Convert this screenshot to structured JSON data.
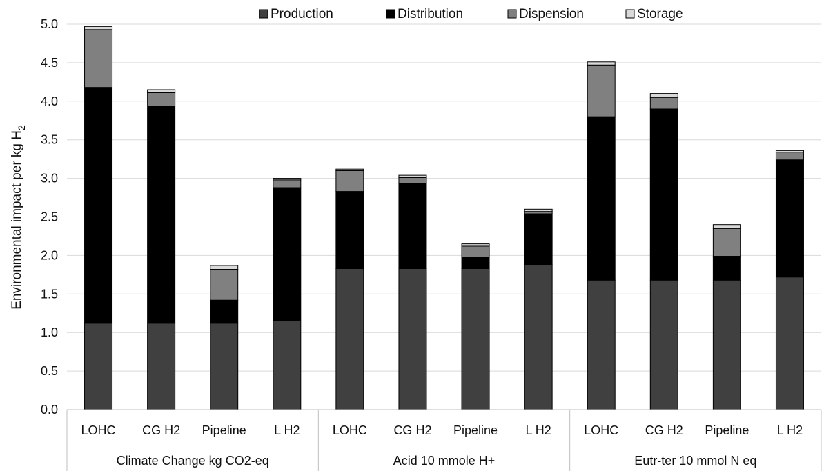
{
  "chart_data": {
    "type": "bar",
    "stacked": true,
    "ylabel": "Environmental impact per kg H",
    "ylabel_subscript": "2",
    "ylim": [
      0,
      5.0
    ],
    "yticks": [
      "0.0",
      "0.5",
      "1.0",
      "1.5",
      "2.0",
      "2.5",
      "3.0",
      "3.5",
      "4.0",
      "4.5",
      "5.0"
    ],
    "grid": "horizontal",
    "legend_position": "top",
    "categories": [
      "LOHC",
      "CG H2",
      "Pipeline",
      "L H2",
      "LOHC",
      "CG H2",
      "Pipeline",
      "L H2",
      "LOHC",
      "CG H2",
      "Pipeline",
      "L H2"
    ],
    "groups": [
      {
        "label": "Climate Change kg CO2-eq",
        "span": [
          0,
          3
        ]
      },
      {
        "label": "Acid 10 mmole H+",
        "span": [
          4,
          7
        ]
      },
      {
        "label": "Eutr-ter 10 mmol N eq",
        "span": [
          8,
          11
        ]
      }
    ],
    "series": [
      {
        "name": "Production",
        "color": "#404040",
        "values": [
          1.12,
          1.12,
          1.12,
          1.15,
          1.83,
          1.83,
          1.83,
          1.88,
          1.68,
          1.68,
          1.68,
          1.72
        ]
      },
      {
        "name": "Distribution",
        "color": "#000000",
        "values": [
          3.06,
          2.82,
          0.3,
          1.73,
          1.0,
          1.1,
          0.15,
          0.66,
          2.12,
          2.22,
          0.31,
          1.52
        ]
      },
      {
        "name": "Dispension",
        "color": "#808080",
        "values": [
          0.75,
          0.17,
          0.4,
          0.1,
          0.27,
          0.08,
          0.14,
          0.03,
          0.67,
          0.15,
          0.36,
          0.1
        ]
      },
      {
        "name": "Storage",
        "color": "#d9d9d9",
        "values": [
          0.04,
          0.04,
          0.05,
          0.02,
          0.02,
          0.03,
          0.03,
          0.03,
          0.04,
          0.05,
          0.05,
          0.02
        ]
      }
    ]
  }
}
